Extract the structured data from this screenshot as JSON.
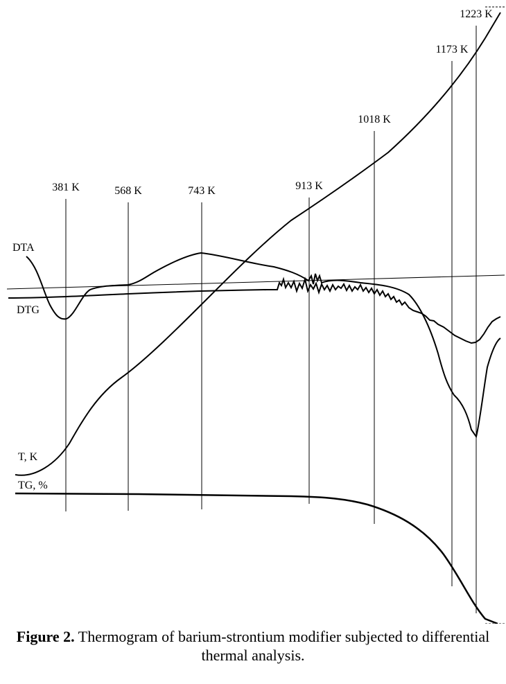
{
  "chart_data": {
    "type": "line",
    "title": "",
    "temperature_markers": [
      "381 K",
      "568 K",
      "743 K",
      "913 K",
      "1018 K",
      "1173 K",
      "1223 K"
    ],
    "curves": [
      {
        "name": "DTA",
        "shape": "endotherm near 381 K, broad exotherm near 743 K, serrated 913–1018 K, deep endotherm near 1223 K"
      },
      {
        "name": "DTG",
        "shape": "nearly flat, noisy from 913 K, dip near 1223 K"
      },
      {
        "name": "T, K",
        "shape": "monotonic rise from 381 K to 1223 K"
      },
      {
        "name": "TG, %",
        "shape": "flat until 913 K, steep mass loss after 1018 K"
      }
    ],
    "grid": false,
    "baseline": true
  },
  "caption": {
    "label": "Figure 2.",
    "text": " Thermogram of barium-strontium modifier subjected to differential thermal analysis."
  }
}
